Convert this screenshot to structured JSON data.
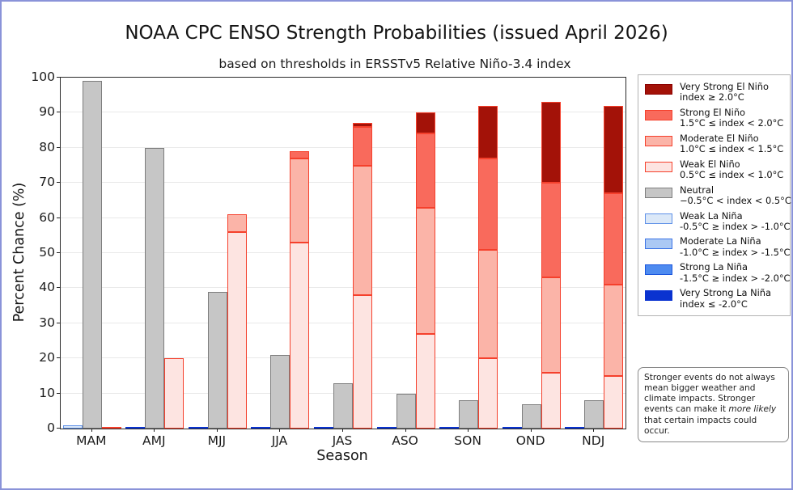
{
  "header": {
    "title": "NOAA CPC ENSO Strength Probabilities (issued April 2026)",
    "subtitle": "based on thresholds in ERSSTv5 Relative Niño-3.4 index"
  },
  "axes": {
    "y_label": "Percent Chance (%)",
    "x_label": "Season",
    "y_ticks": [
      0,
      10,
      20,
      30,
      40,
      50,
      60,
      70,
      80,
      90,
      100
    ]
  },
  "chart_data": {
    "type": "bar",
    "stacked": true,
    "title": "NOAA CPC ENSO Strength Probabilities (issued April 2026)",
    "subtitle": "based on thresholds in ERSSTv5 Relative Niño-3.4 index",
    "xlabel": "Season",
    "ylabel": "Percent Chance (%)",
    "ylim": [
      0,
      100
    ],
    "grid": true,
    "legend_position": "right",
    "categories": [
      "MAM",
      "AMJ",
      "MJJ",
      "JJA",
      "JAS",
      "ASO",
      "SON",
      "OND",
      "NDJ"
    ],
    "bar_order": [
      "la_nina",
      "neutral",
      "el_nino"
    ],
    "series": [
      {
        "name": "Weak La Niña",
        "bar": "la_nina",
        "fill": "#dbe8f8",
        "edge": "#5e90e8",
        "values": [
          1,
          0,
          0,
          0,
          0,
          0,
          0,
          0,
          0
        ]
      },
      {
        "name": "Moderate La Niña",
        "bar": "la_nina",
        "fill": "#abc9f4",
        "edge": "#3c74e6",
        "values": [
          0,
          0,
          0,
          0,
          0,
          0,
          0,
          0,
          0
        ]
      },
      {
        "name": "Strong La Niña",
        "bar": "la_nina",
        "fill": "#4e8bf0",
        "edge": "#1a55dd",
        "values": [
          0,
          0,
          0,
          0,
          0,
          0,
          0,
          0,
          0
        ]
      },
      {
        "name": "Very Strong La Niña",
        "bar": "la_nina",
        "fill": "#0a33d0",
        "edge": "#0a33d0",
        "values": [
          0,
          0,
          0,
          0,
          0,
          0,
          0,
          0,
          0
        ]
      },
      {
        "name": "Neutral",
        "bar": "neutral",
        "fill": "#c6c6c6",
        "edge": "#7d7d7d",
        "values": [
          99,
          80,
          39,
          21,
          13,
          10,
          8,
          7,
          8
        ]
      },
      {
        "name": "Weak El Niño",
        "bar": "el_nino",
        "fill": "#fde4e1",
        "edge": "#f5402c",
        "values": [
          0,
          20,
          56,
          53,
          38,
          27,
          20,
          16,
          15
        ]
      },
      {
        "name": "Moderate El Niño",
        "bar": "el_nino",
        "fill": "#fbb4a8",
        "edge": "#f5402c",
        "values": [
          0,
          0,
          5,
          24,
          37,
          36,
          31,
          27,
          26
        ]
      },
      {
        "name": "Strong El Niño",
        "bar": "el_nino",
        "fill": "#f96a5c",
        "edge": "#f5402c",
        "values": [
          0,
          0,
          0,
          2,
          11,
          21,
          26,
          27,
          26
        ]
      },
      {
        "name": "Very Strong El Niño",
        "bar": "el_nino",
        "fill": "#a31208",
        "edge": "#f5402c",
        "values": [
          0,
          0,
          0,
          0,
          1,
          6,
          15,
          23,
          25
        ]
      }
    ],
    "zero_line_colors": {
      "la_nina": "#0a33d0",
      "neutral": "#7d7d7d",
      "el_nino": "#f5402c"
    }
  },
  "legend": {
    "items": [
      {
        "name": "Very Strong El Niño",
        "range": "index ≥ 2.0°C",
        "fill": "#a31208",
        "edge": "#8b0000"
      },
      {
        "name": "Strong El Niño",
        "range": "1.5°C ≤ index < 2.0°C",
        "fill": "#f96a5c",
        "edge": "#f5402c"
      },
      {
        "name": "Moderate El Niño",
        "range": "1.0°C ≤ index < 1.5°C",
        "fill": "#fbb4a8",
        "edge": "#f5402c"
      },
      {
        "name": "Weak El Niño",
        "range": "0.5°C ≤ index < 1.0°C",
        "fill": "#fde4e1",
        "edge": "#f5402c"
      },
      {
        "name": "Neutral",
        "range": "−0.5°C < index < 0.5°C",
        "fill": "#c6c6c6",
        "edge": "#7d7d7d"
      },
      {
        "name": "Weak La Niña",
        "range": "-0.5°C ≥ index > -1.0°C",
        "fill": "#dbe8f8",
        "edge": "#5e90e8"
      },
      {
        "name": "Moderate La Niña",
        "range": "-1.0°C ≥ index > -1.5°C",
        "fill": "#abc9f4",
        "edge": "#3c74e6"
      },
      {
        "name": "Strong La Niña",
        "range": "-1.5°C ≥ index > -2.0°C",
        "fill": "#4e8bf0",
        "edge": "#1a55dd"
      },
      {
        "name": "Very Strong La Niña",
        "range": "index ≤ -2.0°C",
        "fill": "#0a33d0",
        "edge": "#0a33d0"
      }
    ]
  },
  "note": {
    "text_before": "Stronger events do not always mean bigger weather and climate impacts. Stronger events can make it ",
    "italic": "more likely",
    "text_after": " that certain impacts could occur."
  },
  "colors": {
    "figure_border": "#8a93d9",
    "grid": "#e9e9e9",
    "spine": "#2a2a2a"
  }
}
